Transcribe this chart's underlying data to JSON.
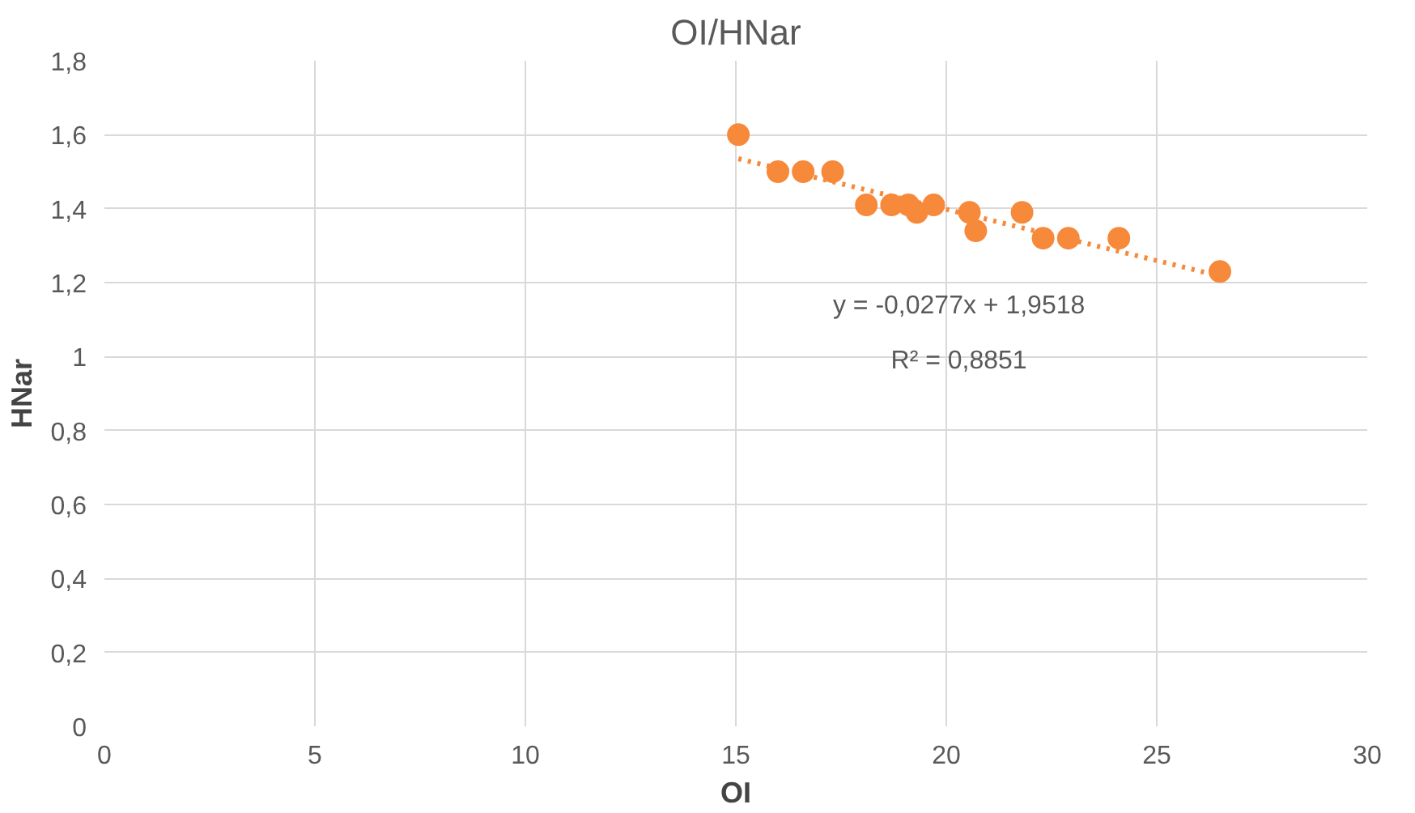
{
  "chart_data": {
    "type": "scatter",
    "title": "OI/HNar",
    "xlabel": "OI",
    "ylabel": "HNar",
    "xlim": [
      0,
      30
    ],
    "xticks": [
      0,
      5,
      10,
      15,
      20,
      25,
      30
    ],
    "ylim": [
      0,
      1.8
    ],
    "yticks": [
      {
        "value": 0,
        "label": "0"
      },
      {
        "value": 0.2,
        "label": "0,2"
      },
      {
        "value": 0.4,
        "label": "0,4"
      },
      {
        "value": 0.6,
        "label": "0,6"
      },
      {
        "value": 0.8,
        "label": "0,8"
      },
      {
        "value": 1,
        "label": "1"
      },
      {
        "value": 1.2,
        "label": "1,2"
      },
      {
        "value": 1.4,
        "label": "1,4"
      },
      {
        "value": 1.6,
        "label": "1,6"
      },
      {
        "value": 1.8,
        "label": "1,8"
      }
    ],
    "grid": true,
    "series": [
      {
        "marker": "circle",
        "color": "#f7893b",
        "x": [
          15.06,
          16.0,
          16.6,
          17.3,
          18.1,
          18.7,
          19.1,
          19.3,
          19.7,
          20.55,
          20.7,
          21.8,
          22.3,
          22.9,
          24.1,
          26.5
        ],
        "values": [
          1.6,
          1.5,
          1.5,
          1.5,
          1.41,
          1.41,
          1.41,
          1.39,
          1.41,
          1.39,
          1.34,
          1.39,
          1.32,
          1.32,
          1.32,
          1.23
        ]
      },
      {
        "type": "line",
        "marker": "none",
        "color": "#f7893b",
        "line_style": "dotted",
        "x": [
          15.06,
          26.5
        ],
        "values": [
          1.535,
          1.218
        ]
      }
    ],
    "annotations": [
      "y = -0,0277x + 1,9518",
      "R² = 0,8851"
    ]
  }
}
